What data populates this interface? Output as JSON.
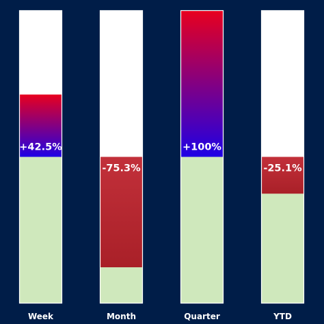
{
  "chart_data": {
    "type": "bar",
    "categories": [
      "Week",
      "Month",
      "Quarter",
      "YTD"
    ],
    "base_fraction": 0.5,
    "changes_percent": [
      42.5,
      -75.3,
      100,
      -25.1
    ],
    "labels": [
      "+42.5%",
      "-75.3%",
      "+100%",
      "-25.1%"
    ],
    "ylim": [
      0,
      1
    ],
    "colors": {
      "background": "#001d48",
      "track": "#ffffff",
      "base": "#cfe8bc",
      "positive_top": "#e8001e",
      "positive_bottom": "#1e00e6",
      "negative_top": "#c2303a",
      "negative_bottom": "#a92028",
      "outline": "#ffffff"
    }
  }
}
